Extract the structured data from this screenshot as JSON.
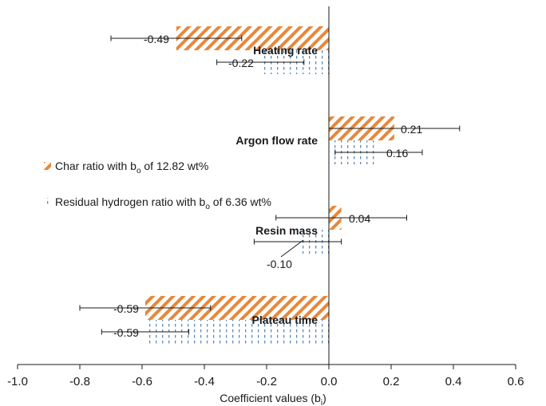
{
  "chart_data": {
    "type": "bar",
    "orientation": "horizontal",
    "xlabel": "Coefficient values (b",
    "xlabel_subscript": "i",
    "xlabel_suffix": ")",
    "xlim": [
      -1.0,
      0.6
    ],
    "xticks": [
      "-1.0",
      "-0.8",
      "-0.6",
      "-0.4",
      "-0.2",
      "0.0",
      "0.2",
      "0.4",
      "0.6"
    ],
    "categories": [
      "Heating rate",
      "Argon flow rate",
      "Resin mass",
      "Plateau time"
    ],
    "series": [
      {
        "name": "Char ratio with b",
        "name_subscript": "o",
        "name_suffix": " of 12.82 wt%",
        "color": "#e8873a",
        "pattern": "diagonal-hatch",
        "values": [
          -0.49,
          0.21,
          0.04,
          -0.59
        ],
        "labels": [
          "-0.49",
          "0.21",
          "0.04",
          "-0.59"
        ],
        "error": [
          0.21,
          0.21,
          0.21,
          0.21
        ]
      },
      {
        "name": "Residual hydrogen ratio with b",
        "name_subscript": "o",
        "name_suffix": " of 6.36 wt%",
        "color": "#5a8ab8",
        "pattern": "dashed-vertical",
        "values": [
          -0.22,
          0.16,
          -0.1,
          -0.59
        ],
        "labels": [
          "-0.22",
          "0.16",
          "-0.10",
          "-0.59"
        ],
        "error": [
          0.14,
          0.14,
          0.14,
          0.14
        ]
      }
    ],
    "grid": false,
    "legend_position": "middle-left"
  }
}
